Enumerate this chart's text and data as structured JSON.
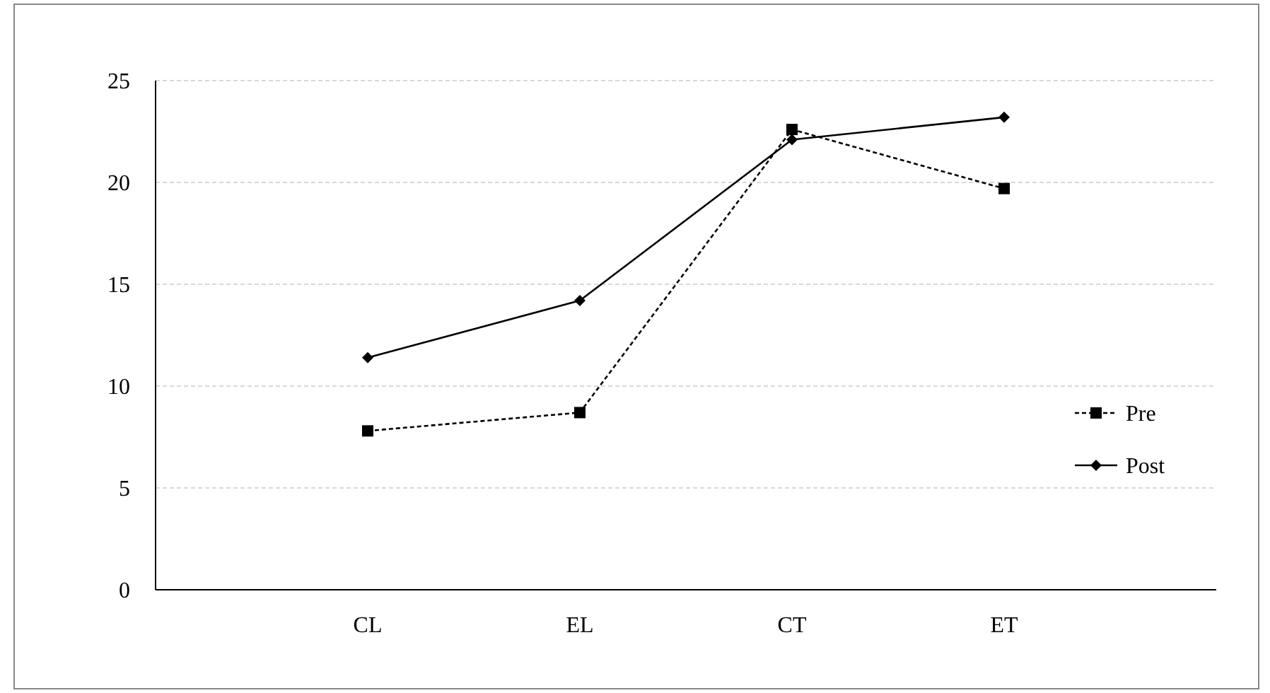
{
  "chart_data": {
    "type": "line",
    "categories": [
      "CL",
      "EL",
      "CT",
      "ET"
    ],
    "series": [
      {
        "name": "Pre",
        "color": "#000000",
        "values": [
          7.8,
          8.7,
          22.6,
          19.7
        ],
        "marker": "square",
        "line_style": "dashed"
      },
      {
        "name": "Post",
        "color": "#000000",
        "values": [
          11.4,
          14.2,
          22.1,
          23.2
        ],
        "marker": "diamond",
        "line_style": "solid"
      }
    ],
    "ylim": [
      0,
      25
    ],
    "yticks": [
      0,
      5,
      10,
      15,
      20,
      25
    ],
    "grid": "y",
    "legend": "right"
  }
}
